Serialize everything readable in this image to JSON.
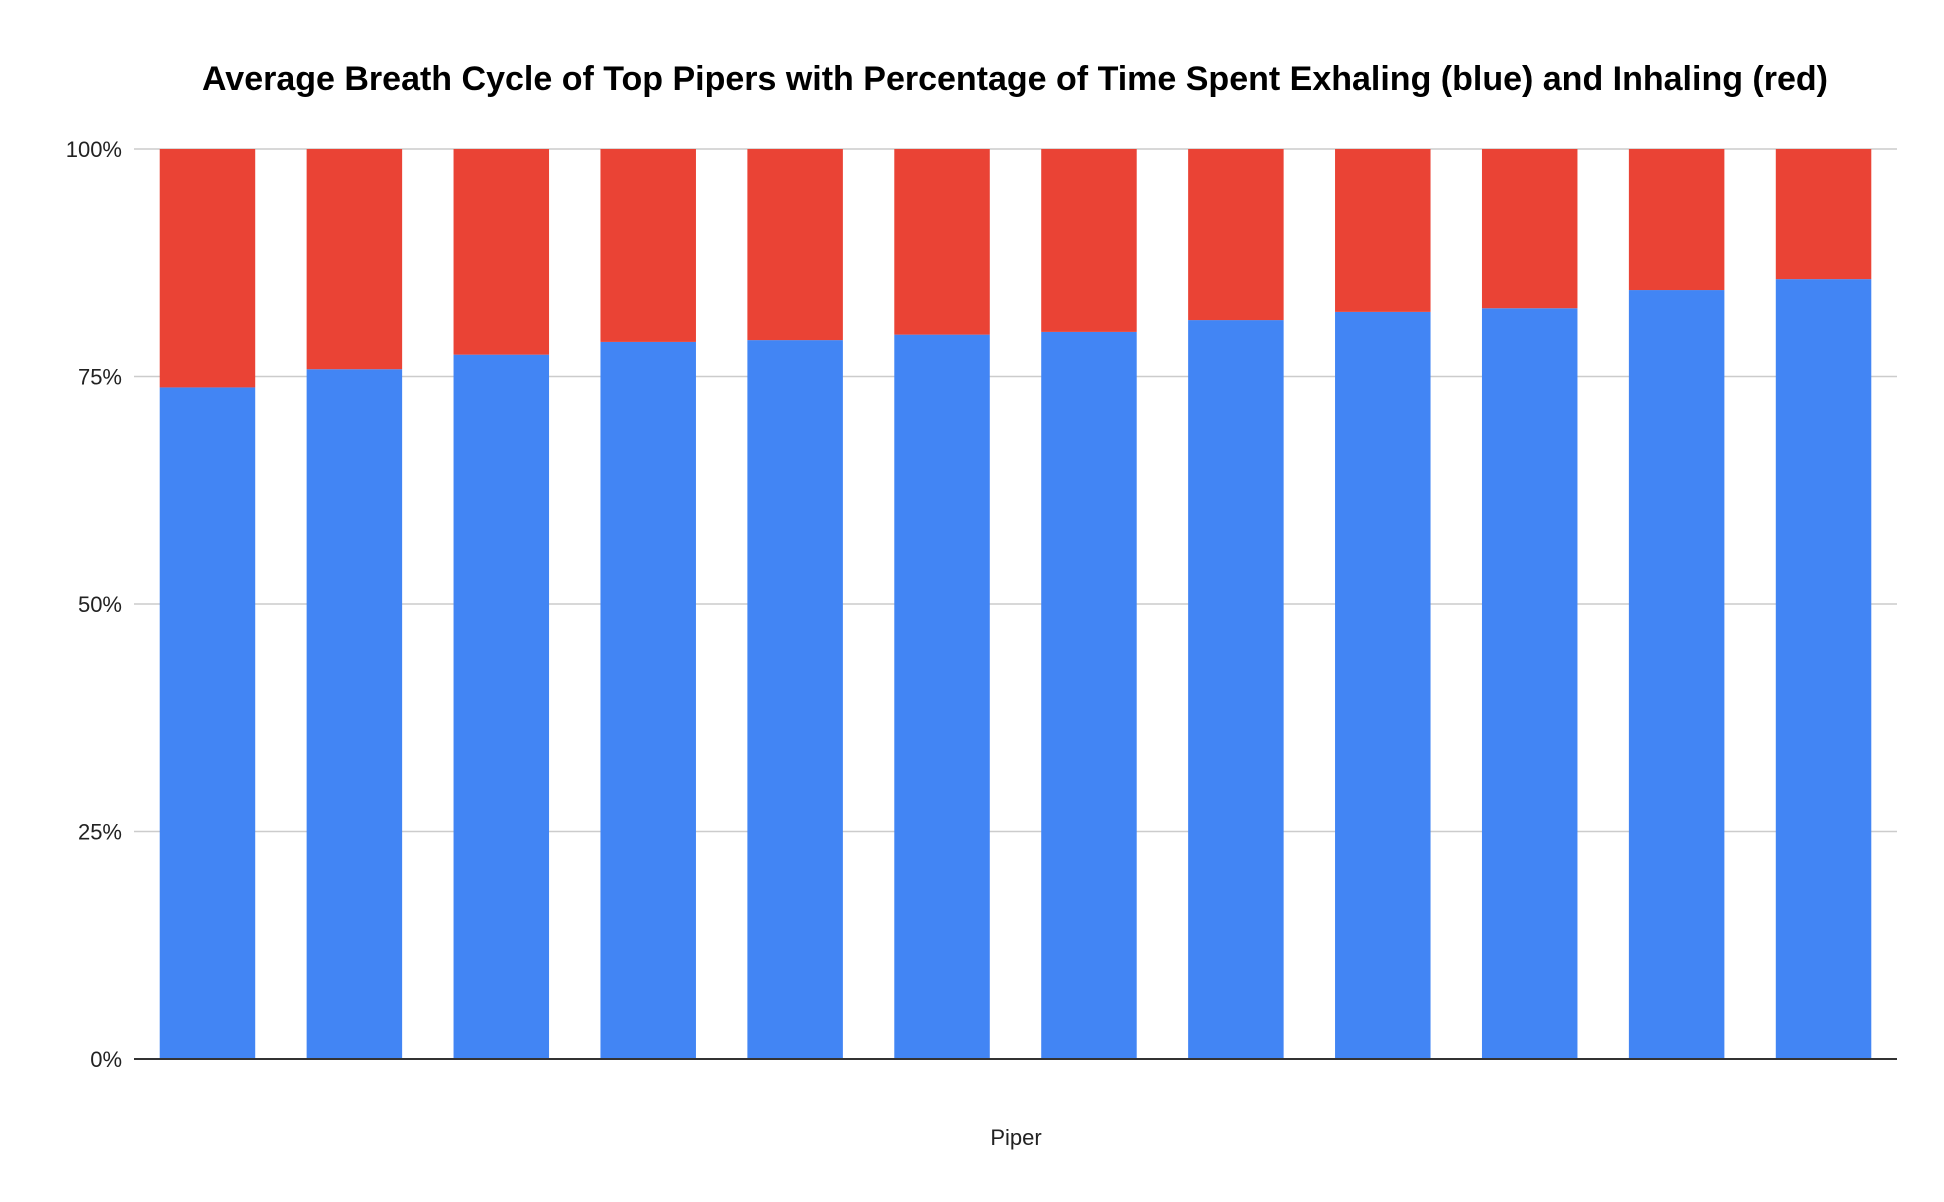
{
  "chart_data": {
    "type": "bar",
    "stacked": true,
    "normalized": true,
    "title": "Average Breath Cycle of Top Pipers with Percentage of Time Spent Exhaling (blue) and Inhaling (red)",
    "xlabel": "Piper",
    "ylabel": "",
    "ylim": [
      0,
      100
    ],
    "y_ticks": [
      "0%",
      "25%",
      "50%",
      "75%",
      "100%"
    ],
    "y_tick_values": [
      0,
      25,
      50,
      75,
      100
    ],
    "grid": true,
    "legend": "none",
    "series": [
      {
        "color": "#4285f4",
        "values": [
          73.8,
          75.8,
          77.4,
          78.8,
          79.0,
          79.6,
          79.9,
          81.2,
          82.1,
          82.5,
          84.5,
          85.7
        ]
      },
      {
        "color": "#ea4335",
        "values": [
          26.2,
          24.2,
          22.6,
          21.2,
          21.0,
          20.4,
          20.1,
          18.8,
          17.9,
          17.5,
          15.5,
          14.3
        ]
      }
    ]
  }
}
